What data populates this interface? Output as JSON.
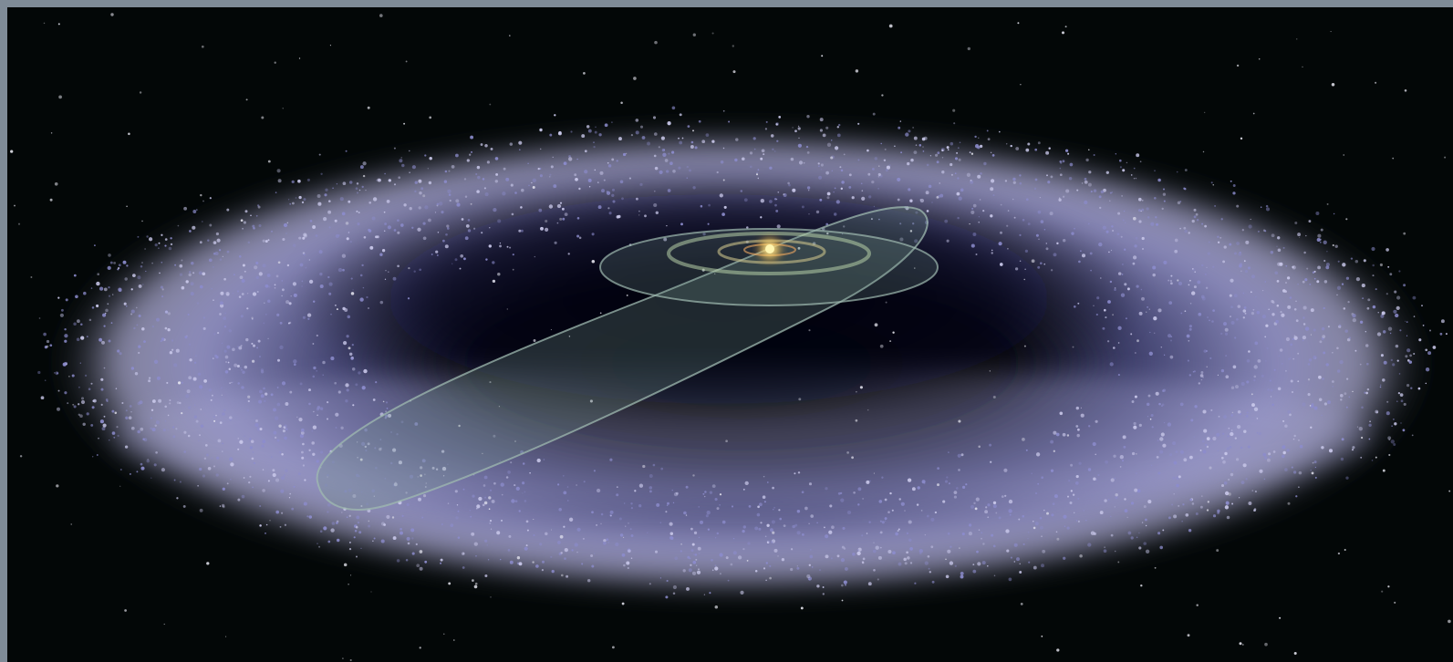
{
  "image": {
    "subject": "kuiper-belt-artwork",
    "colors": {
      "frame": "#7f8b97",
      "space": "#030707",
      "belt": "#8c8ccc",
      "belt_highlight": "#c9c8ea",
      "orbit_plane": "#6f8f86",
      "orbit_line": "#9fbab0",
      "sun": "#ffe36a",
      "star": "#e8e8f2"
    }
  }
}
